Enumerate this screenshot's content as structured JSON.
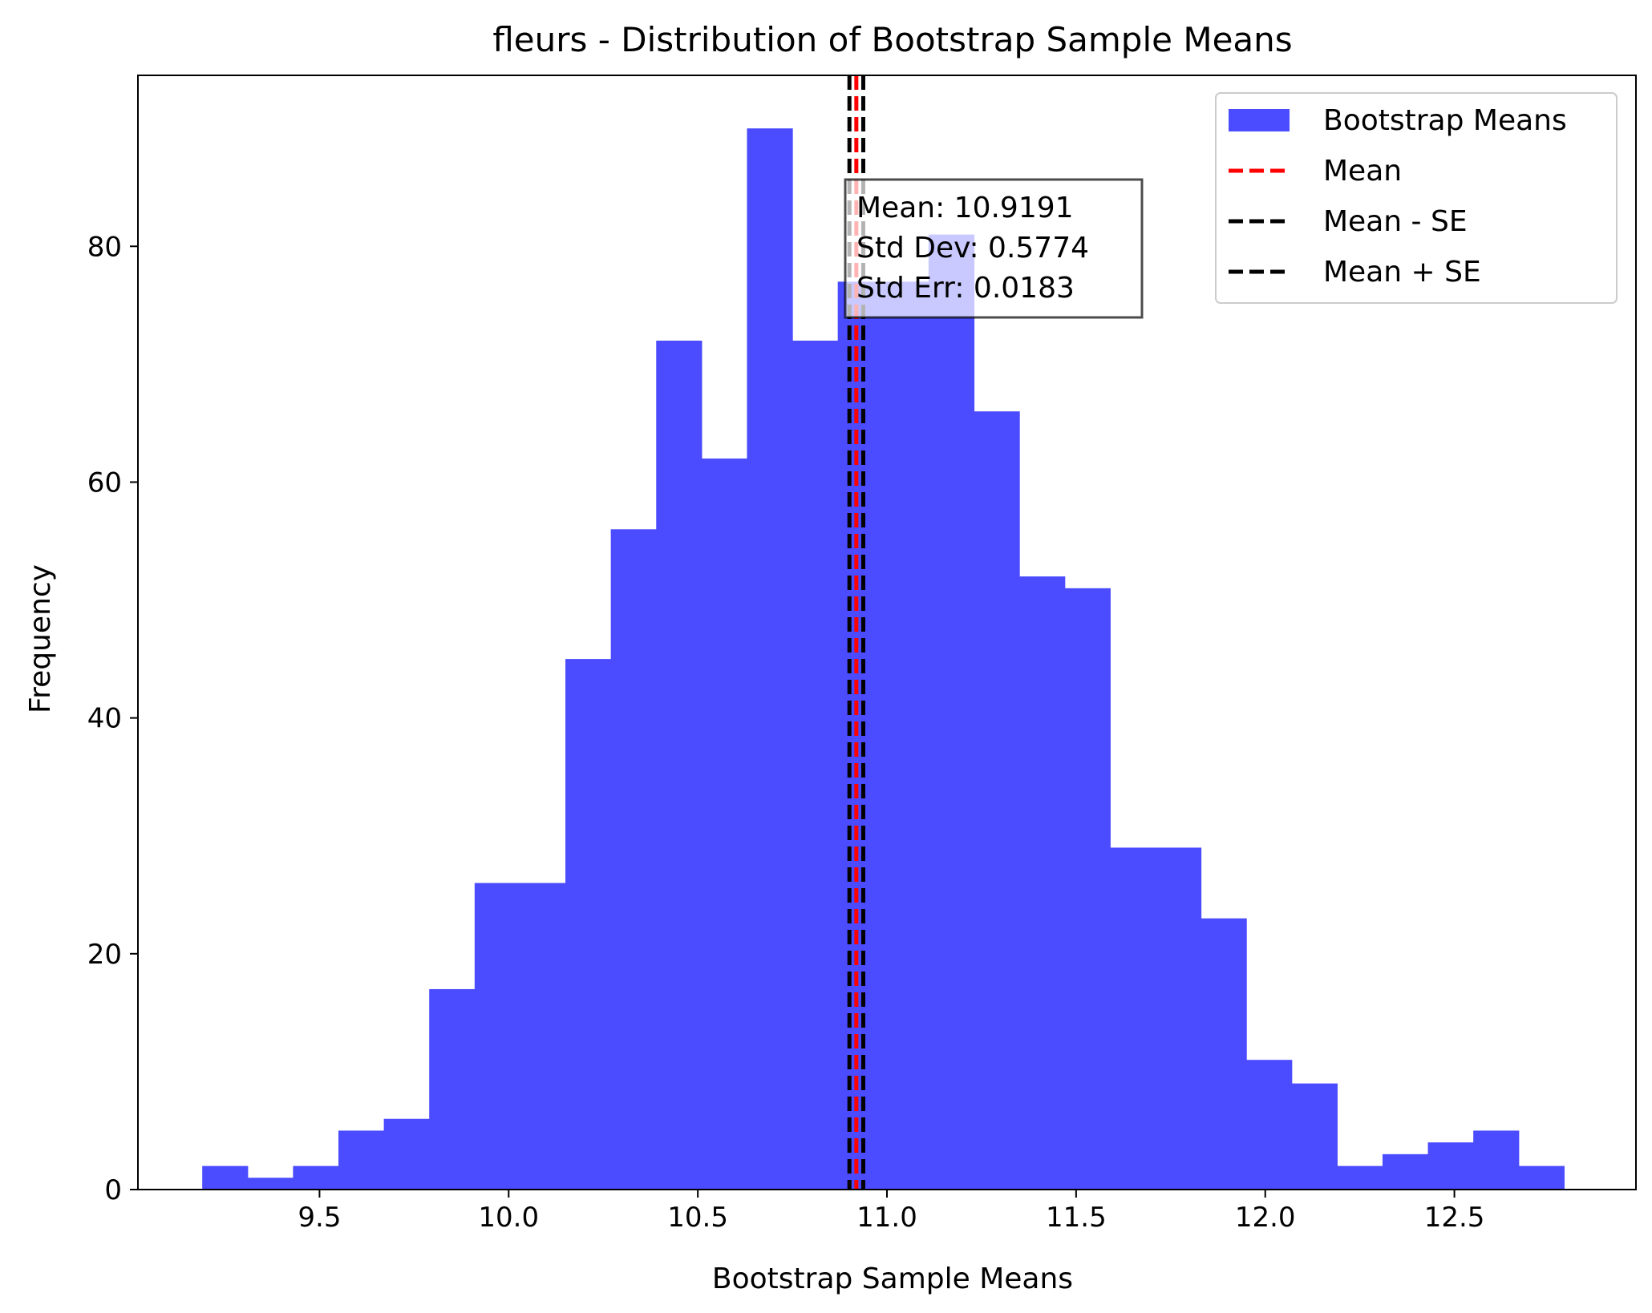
{
  "chart_data": {
    "type": "bar",
    "title": "fleurs - Distribution of Bootstrap Sample Means",
    "xlabel": "Bootstrap Sample Means",
    "ylabel": "Frequency",
    "xlim": [
      9.02,
      12.98
    ],
    "ylim": [
      0,
      94.5
    ],
    "xticks": [
      9.5,
      10.0,
      10.5,
      11.0,
      11.5,
      12.0,
      12.5
    ],
    "xtick_labels": [
      "9.5",
      "10.0",
      "10.5",
      "11.0",
      "11.5",
      "12.0",
      "12.5"
    ],
    "yticks": [
      0,
      20,
      40,
      60,
      80
    ],
    "ytick_labels": [
      "0",
      "20",
      "40",
      "60",
      "80"
    ],
    "bin_start": 9.19,
    "bin_width": 0.12,
    "bin_counts": [
      2,
      1,
      2,
      5,
      6,
      17,
      26,
      26,
      45,
      56,
      72,
      62,
      90,
      72,
      77,
      77,
      81,
      66,
      52,
      51,
      29,
      29,
      23,
      11,
      9,
      2,
      3,
      4,
      5,
      2
    ],
    "bar_color": "#4b4bff",
    "vlines": [
      {
        "name": "Mean",
        "x": 10.9191,
        "color": "#ff0000",
        "style": "dashed"
      },
      {
        "name": "Mean - SE",
        "x": 10.9008,
        "color": "#000000",
        "style": "dashed"
      },
      {
        "name": "Mean + SE",
        "x": 10.9374,
        "color": "#000000",
        "style": "dashed"
      }
    ],
    "legend": {
      "position": "top-right",
      "entries": [
        {
          "label": "Bootstrap Means",
          "kind": "patch",
          "color": "#4b4bff"
        },
        {
          "label": "Mean",
          "kind": "line",
          "color": "#ff0000"
        },
        {
          "label": "Mean - SE",
          "kind": "line",
          "color": "#000000"
        },
        {
          "label": "Mean + SE",
          "kind": "line",
          "color": "#000000"
        }
      ]
    },
    "annotation": {
      "lines": [
        "Mean: 10.9191",
        "Std Dev: 0.5774",
        "Std Err: 0.0183"
      ]
    }
  }
}
